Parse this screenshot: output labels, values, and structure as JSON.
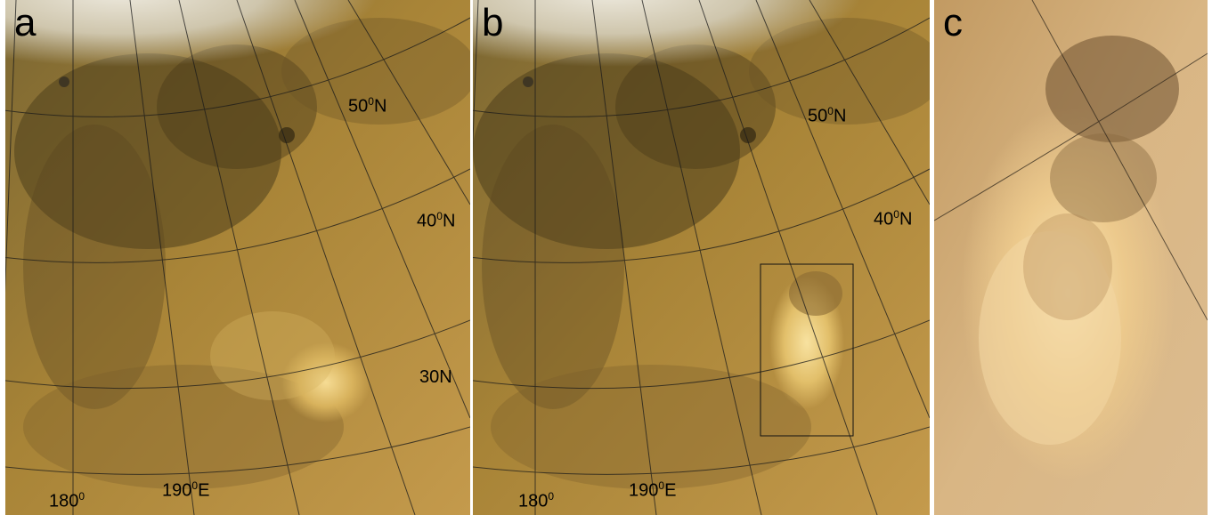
{
  "panels": [
    {
      "letter": "a",
      "grid_labels": {
        "lat_50": {
          "value": "50",
          "degree": "0",
          "suffix": "N"
        },
        "lat_40": {
          "value": "40",
          "degree": "0",
          "suffix": "N"
        },
        "lat_30": {
          "value": "30",
          "degree": "0",
          "suffix": ""
        },
        "lat_30_suffix": "N",
        "lon_180": {
          "value": "180",
          "degree": "0",
          "suffix": ""
        },
        "lon_190": {
          "value": "190",
          "degree": "0",
          "suffix": "E"
        }
      }
    },
    {
      "letter": "b",
      "grid_labels": {
        "lat_50": {
          "value": "50",
          "degree": "0",
          "suffix": "N"
        },
        "lat_40": {
          "value": "40",
          "degree": "0",
          "suffix": "N"
        },
        "lon_180": {
          "value": "180",
          "degree": "0",
          "suffix": ""
        },
        "lon_190": {
          "value": "190",
          "degree": "0",
          "suffix": "E"
        }
      }
    },
    {
      "letter": "c"
    }
  ],
  "colors": {
    "surface_tan": "#b08a3e",
    "dark_band": "#5c4a22",
    "polar_cap": "#d8d2c0",
    "dust_storm": "#f0d08a",
    "grid_line": "#1a1a1a",
    "zoom_panel": "#d9b787"
  }
}
